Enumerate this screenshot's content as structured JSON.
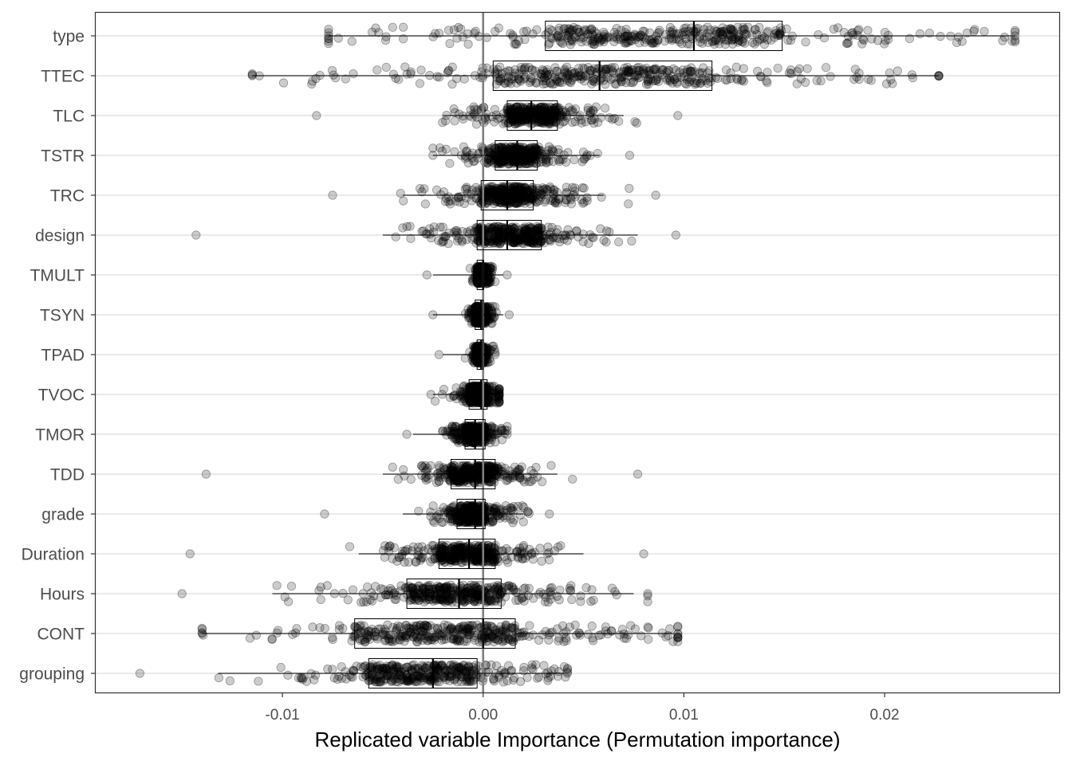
{
  "chart_data": {
    "type": "box-jitter",
    "title": "",
    "xlabel": "Replicated variable Importance (Permutation importance)",
    "ylabel": "",
    "xlim": [
      -0.0193,
      0.0287
    ],
    "xticks": [
      -0.01,
      0.0,
      0.01,
      0.02
    ],
    "xtick_labels": [
      "-0.01",
      "0.00",
      "0.01",
      "0.02"
    ],
    "reference_line_x": 0.0,
    "grid": "horizontal major",
    "legend": "none",
    "colors": {
      "points": "#000000",
      "box": "#000000",
      "reference": "#7f7f7f",
      "grid": "#ebebeb",
      "frame": "#333333"
    },
    "categories": [
      "type",
      "TTEC",
      "TLC",
      "TSTR",
      "TRC",
      "design",
      "TMULT",
      "TSYN",
      "TPAD",
      "TVOC",
      "TMOR",
      "TDD",
      "grade",
      "Duration",
      "Hours",
      "CONT",
      "grouping"
    ],
    "boxes": [
      {
        "name": "type",
        "q1": 0.0031,
        "median": 0.0105,
        "q3": 0.0149,
        "whisker_low": -0.0077,
        "whisker_high": 0.0265,
        "point_min": -0.0077,
        "point_max": 0.0265
      },
      {
        "name": "TTEC",
        "q1": 0.0005,
        "median": 0.0058,
        "q3": 0.0114,
        "whisker_low": -0.0115,
        "whisker_high": 0.0227,
        "point_min": -0.0115,
        "point_max": 0.0227
      },
      {
        "name": "TLC",
        "q1": 0.0012,
        "median": 0.0024,
        "q3": 0.0037,
        "whisker_low": -0.002,
        "whisker_high": 0.007,
        "point_min": -0.0083,
        "point_max": 0.0097
      },
      {
        "name": "TSTR",
        "q1": 0.0006,
        "median": 0.0017,
        "q3": 0.0027,
        "whisker_low": -0.0025,
        "whisker_high": 0.0058,
        "point_min": -0.0025,
        "point_max": 0.0073
      },
      {
        "name": "TRC",
        "q1": -0.0001,
        "median": 0.0012,
        "q3": 0.0025,
        "whisker_low": -0.004,
        "whisker_high": 0.006,
        "point_min": -0.0075,
        "point_max": 0.0086
      },
      {
        "name": "design",
        "q1": -0.0003,
        "median": 0.0012,
        "q3": 0.0029,
        "whisker_low": -0.005,
        "whisker_high": 0.0077,
        "point_min": -0.0143,
        "point_max": 0.0096
      },
      {
        "name": "TMULT",
        "q1": -0.0003,
        "median": 0.0,
        "q3": 0.0,
        "whisker_low": -0.0025,
        "whisker_high": 0.001,
        "point_min": -0.0028,
        "point_max": 0.0012
      },
      {
        "name": "TSYN",
        "q1": -0.0004,
        "median": -0.0001,
        "q3": 0.0,
        "whisker_low": -0.0025,
        "whisker_high": 0.001,
        "point_min": -0.0025,
        "point_max": 0.0013
      },
      {
        "name": "TPAD",
        "q1": -0.0003,
        "median": -0.0001,
        "q3": 0.0,
        "whisker_low": -0.002,
        "whisker_high": 0.0005,
        "point_min": -0.0022,
        "point_max": 0.0006
      },
      {
        "name": "TVOC",
        "q1": -0.0007,
        "median": -0.0001,
        "q3": 0.0002,
        "whisker_low": -0.0025,
        "whisker_high": 0.0008,
        "point_min": -0.0026,
        "point_max": 0.0008
      },
      {
        "name": "TMOR",
        "q1": -0.0009,
        "median": -0.0004,
        "q3": 0.0001,
        "whisker_low": -0.0035,
        "whisker_high": 0.0012,
        "point_min": -0.0038,
        "point_max": 0.0012
      },
      {
        "name": "TDD",
        "q1": -0.0016,
        "median": -0.0004,
        "q3": 0.0006,
        "whisker_low": -0.005,
        "whisker_high": 0.0037,
        "point_min": -0.0138,
        "point_max": 0.0077
      },
      {
        "name": "grade",
        "q1": -0.0013,
        "median": -0.0004,
        "q3": 0.0001,
        "whisker_low": -0.004,
        "whisker_high": 0.002,
        "point_min": -0.0079,
        "point_max": 0.0033
      },
      {
        "name": "Duration",
        "q1": -0.0022,
        "median": -0.0007,
        "q3": 0.0006,
        "whisker_low": -0.0062,
        "whisker_high": 0.005,
        "point_min": -0.0146,
        "point_max": 0.008
      },
      {
        "name": "Hours",
        "q1": -0.0038,
        "median": -0.0012,
        "q3": 0.0009,
        "whisker_low": -0.0105,
        "whisker_high": 0.0075,
        "point_min": -0.015,
        "point_max": 0.0082
      },
      {
        "name": "CONT",
        "q1": -0.0064,
        "median": 0.0,
        "q3": 0.0016,
        "whisker_low": -0.014,
        "whisker_high": 0.0095,
        "point_min": -0.014,
        "point_max": 0.0097
      },
      {
        "name": "grouping",
        "q1": -0.0057,
        "median": -0.0025,
        "q3": -0.0003,
        "whisker_low": -0.0132,
        "whisker_high": 0.004,
        "point_min": -0.0171,
        "point_max": 0.0042
      }
    ]
  }
}
